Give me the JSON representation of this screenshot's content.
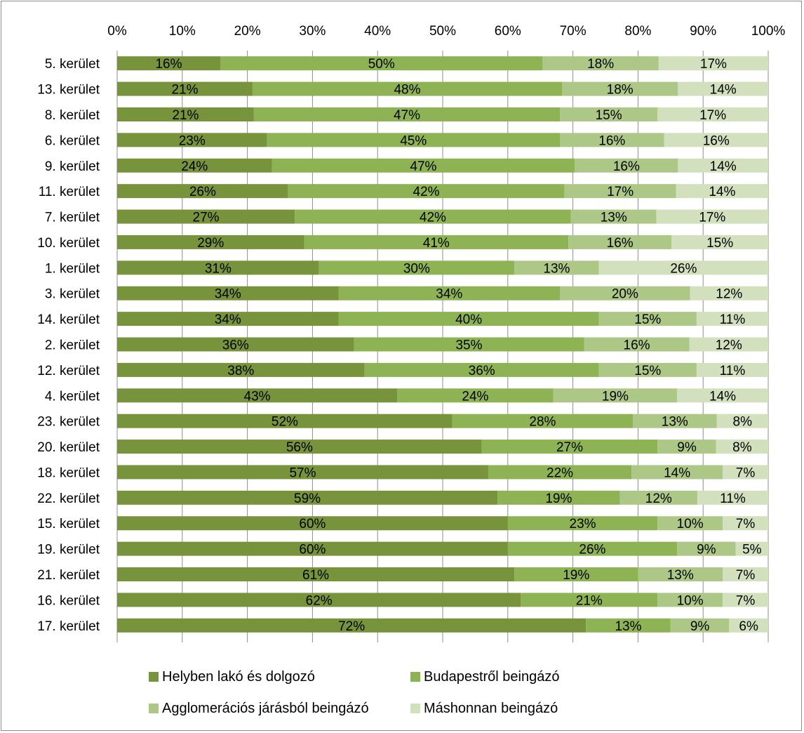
{
  "chart_data": {
    "type": "bar",
    "orientation": "horizontal",
    "stacked": true,
    "normalized": true,
    "title": "",
    "xlabel": "",
    "ylabel": "",
    "xlim": [
      0,
      100
    ],
    "x_ticks": [
      "0%",
      "10%",
      "20%",
      "30%",
      "40%",
      "50%",
      "60%",
      "70%",
      "80%",
      "90%",
      "100%"
    ],
    "x_axis_position": "top",
    "grid": true,
    "legend_position": "bottom",
    "categories": [
      "5. kerület",
      "13. kerület",
      "8. kerület",
      "6. kerület",
      "9. kerület",
      "11. kerület",
      "7. kerület",
      "10. kerület",
      "1. kerület",
      "3. kerület",
      "14. kerület",
      "2. kerület",
      "12. kerület",
      "4. kerület",
      "23. kerület",
      "20. kerület",
      "18. kerület",
      "22. kerület",
      "15. kerület",
      "19. kerület",
      "21. kerület",
      "16. kerület",
      "17. kerület"
    ],
    "series": [
      {
        "name": "Helyben lakó és dolgozó",
        "color": "#77933c",
        "values": [
          16,
          21,
          21,
          23,
          24,
          26,
          27,
          29,
          31,
          34,
          34,
          36,
          38,
          43,
          52,
          56,
          57,
          59,
          60,
          60,
          61,
          62,
          72
        ],
        "labels": [
          "16%",
          "21%",
          "21%",
          "23%",
          "24%",
          "26%",
          "27%",
          "29%",
          "31%",
          "34%",
          "34%",
          "36%",
          "38%",
          "43%",
          "52%",
          "56%",
          "57%",
          "59%",
          "60%",
          "60%",
          "61%",
          "62%",
          "72%"
        ]
      },
      {
        "name": "Budapestről beingázó",
        "color": "#8db354",
        "values": [
          50,
          48,
          47,
          45,
          47,
          42,
          42,
          41,
          30,
          34,
          40,
          35,
          36,
          24,
          28,
          27,
          22,
          19,
          23,
          26,
          19,
          21,
          13
        ],
        "labels": [
          "50%",
          "48%",
          "47%",
          "45%",
          "47%",
          "42%",
          "42%",
          "41%",
          "30%",
          "34%",
          "40%",
          "35%",
          "36%",
          "24%",
          "28%",
          "27%",
          "22%",
          "19%",
          "23%",
          "26%",
          "19%",
          "21%",
          "13%"
        ]
      },
      {
        "name": "Agglomerációs járásból beingázó",
        "color": "#adc787",
        "values": [
          18,
          18,
          15,
          16,
          16,
          17,
          13,
          16,
          13,
          20,
          15,
          16,
          15,
          19,
          13,
          9,
          14,
          12,
          10,
          9,
          13,
          10,
          9
        ],
        "labels": [
          "18%",
          "18%",
          "15%",
          "16%",
          "16%",
          "17%",
          "13%",
          "16%",
          "13%",
          "20%",
          "15%",
          "16%",
          "15%",
          "19%",
          "13%",
          "9%",
          "14%",
          "12%",
          "10%",
          "9%",
          "13%",
          "10%",
          "9%"
        ]
      },
      {
        "name": "Máshonnan beingázó",
        "color": "#d2e0bd",
        "values": [
          17,
          14,
          17,
          16,
          14,
          14,
          17,
          15,
          26,
          12,
          11,
          12,
          11,
          14,
          8,
          8,
          7,
          11,
          7,
          5,
          7,
          7,
          6
        ],
        "labels": [
          "17%",
          "14%",
          "17%",
          "16%",
          "14%",
          "14%",
          "17%",
          "15%",
          "26%",
          "12%",
          "11%",
          "12%",
          "11%",
          "14%",
          "8%",
          "8%",
          "7%",
          "11%",
          "7%",
          "5%",
          "7%",
          "7%",
          "6%"
        ]
      }
    ]
  }
}
